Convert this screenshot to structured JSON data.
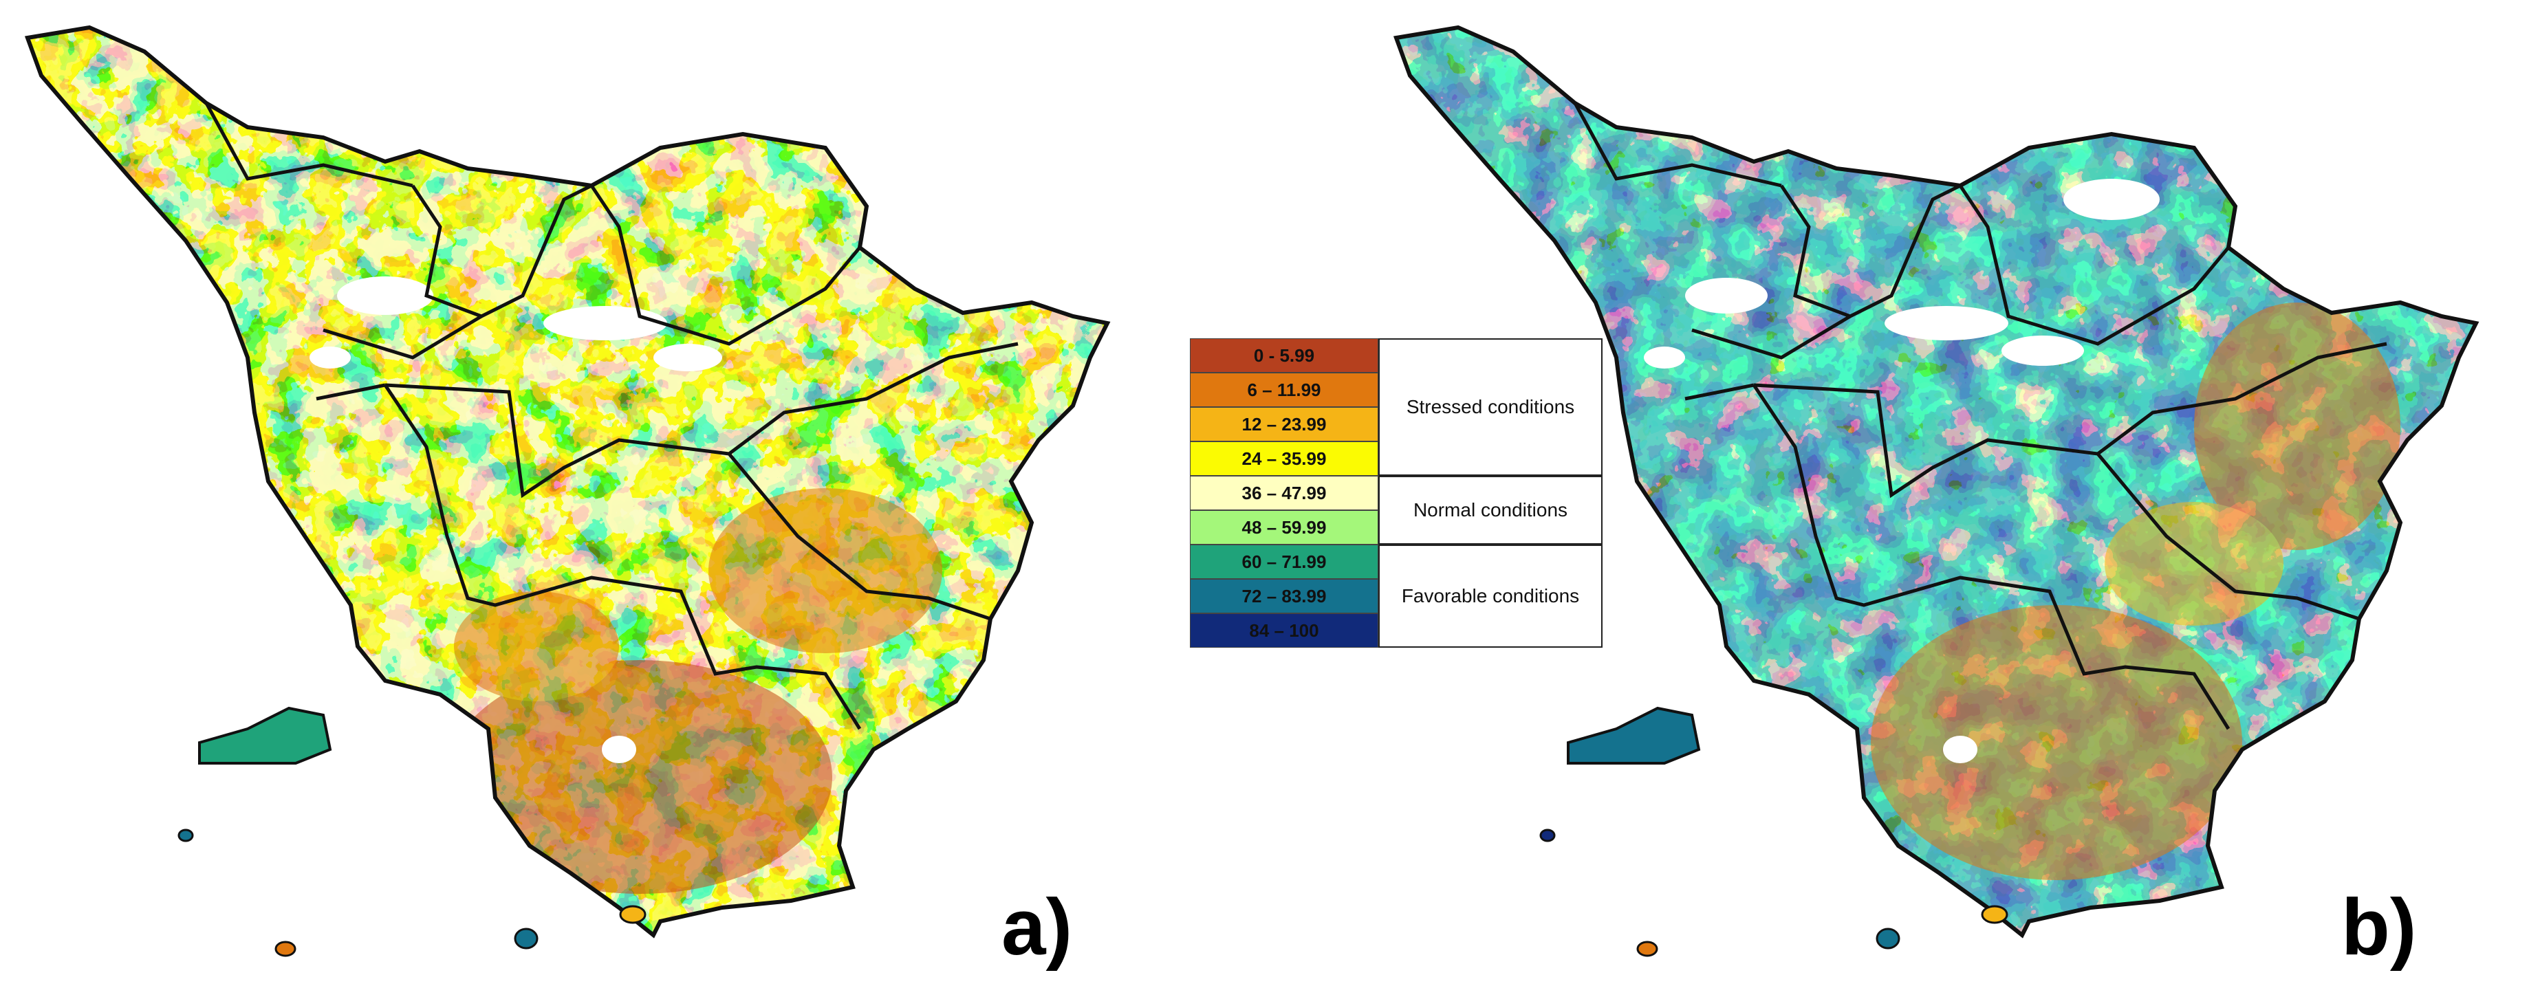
{
  "panels": [
    {
      "label": "a)"
    },
    {
      "label": "b)"
    }
  ],
  "legend": {
    "classes": [
      {
        "range": "0 - 5.99",
        "color": "#b5401e"
      },
      {
        "range": "6 – 11.99",
        "color": "#e0780f"
      },
      {
        "range": "12 – 23.99",
        "color": "#f5b416"
      },
      {
        "range": "24 – 35.99",
        "color": "#fbfb02"
      },
      {
        "range": "36 – 47.99",
        "color": "#ffffc0"
      },
      {
        "range": "48 – 59.99",
        "color": "#a4f77a"
      },
      {
        "range": "60 – 71.99",
        "color": "#1fa37a"
      },
      {
        "range": "72 – 83.99",
        "color": "#14728e"
      },
      {
        "range": "84 – 100",
        "color": "#112a7a"
      }
    ],
    "groups": [
      {
        "label": "Stressed conditions",
        "count": 4
      },
      {
        "label": "Normal conditions",
        "count": 2
      },
      {
        "label": "Favorable conditions",
        "count": 3
      }
    ]
  }
}
